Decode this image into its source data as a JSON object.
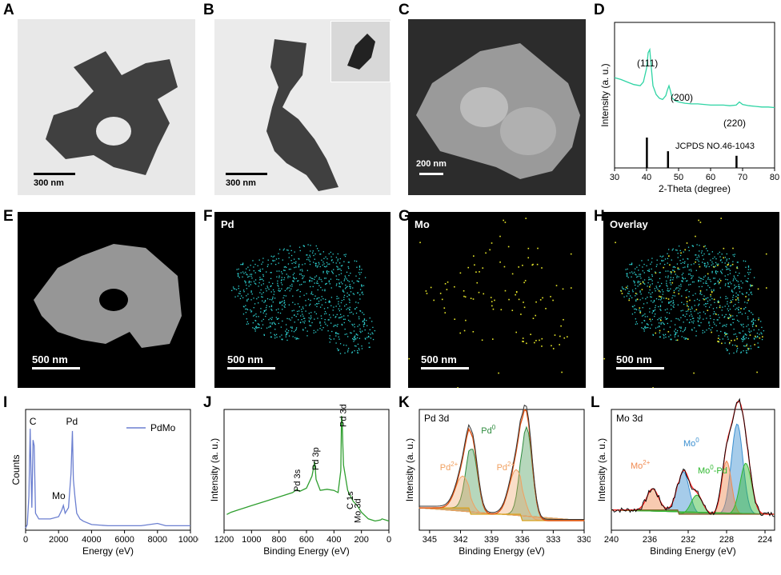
{
  "panel_letters": {
    "A": "A",
    "B": "B",
    "C": "C",
    "D": "D",
    "E": "E",
    "F": "F",
    "G": "G",
    "H": "H",
    "I": "I",
    "J": "J",
    "K": "K",
    "L": "L"
  },
  "micrographs": {
    "A": {
      "scale": "300 nm",
      "bg": "#e8e8e8"
    },
    "B": {
      "scale": "300 nm",
      "inset_scale": "",
      "bg": "#ebebeb"
    },
    "C": {
      "scale": "200 nm",
      "bg": "#2c2c2c"
    },
    "E": {
      "scale": "500 nm",
      "element": ""
    },
    "F": {
      "scale": "500 nm",
      "element": "Pd",
      "color": "#2fd6d6"
    },
    "G": {
      "scale": "500 nm",
      "element": "Mo",
      "color": "#e8e82a"
    },
    "H": {
      "scale": "500 nm",
      "element": "Overlay"
    }
  },
  "chart_data": [
    {
      "id": "D",
      "type": "line",
      "xlabel": "2-Theta (degree)",
      "ylabel": "Intensity (a. u.)",
      "xlim": [
        30,
        80
      ],
      "xticks": [
        30,
        40,
        50,
        60,
        70,
        80
      ],
      "color": "#2ed4a4",
      "series": [
        {
          "x": [
            30,
            32,
            34,
            36,
            38,
            39,
            40,
            40.5,
            41,
            41.5,
            42,
            43,
            44,
            45,
            46,
            46.5,
            47,
            47.5,
            48,
            49,
            50,
            52,
            54,
            56,
            58,
            60,
            62,
            64,
            66,
            68,
            69,
            70,
            72,
            74,
            76,
            78,
            80
          ],
          "y": [
            0.55,
            0.52,
            0.48,
            0.44,
            0.42,
            0.48,
            0.7,
            0.95,
            1.0,
            0.7,
            0.42,
            0.28,
            0.22,
            0.2,
            0.26,
            0.35,
            0.42,
            0.33,
            0.22,
            0.18,
            0.16,
            0.14,
            0.13,
            0.13,
            0.12,
            0.11,
            0.11,
            0.11,
            0.1,
            0.11,
            0.16,
            0.12,
            0.1,
            0.09,
            0.08,
            0.08,
            0.07
          ]
        }
      ],
      "annotations": [
        "(111)",
        "(200)",
        "(220)"
      ],
      "reference": {
        "label": "JCPDS NO.46-1043",
        "x": [
          40.1,
          46.7,
          68.1
        ],
        "h": [
          1.0,
          0.55,
          0.4
        ]
      }
    },
    {
      "id": "I",
      "type": "line",
      "xlabel": "Energy (eV)",
      "ylabel": "Counts",
      "xlim": [
        0,
        10000
      ],
      "xticks": [
        0,
        2000,
        4000,
        6000,
        8000,
        10000
      ],
      "color": "#6b7fd0",
      "series": [
        {
          "name": "PdMo",
          "x": [
            0,
            100,
            200,
            277,
            330,
            380,
            450,
            520,
            600,
            800,
            1000,
            1500,
            2000,
            2200,
            2293,
            2400,
            2600,
            2750,
            2839,
            2900,
            2990,
            3100,
            3300,
            3500,
            4000,
            5000,
            6000,
            7000,
            8000,
            8500,
            9000,
            10000
          ],
          "y": [
            0.02,
            0.05,
            0.3,
            0.9,
            0.5,
            0.2,
            0.8,
            0.75,
            0.15,
            0.1,
            0.1,
            0.1,
            0.12,
            0.18,
            0.22,
            0.15,
            0.2,
            0.5,
            0.88,
            0.45,
            0.3,
            0.15,
            0.1,
            0.08,
            0.05,
            0.04,
            0.04,
            0.04,
            0.06,
            0.04,
            0.04,
            0.04
          ]
        }
      ],
      "peak_labels": [
        "C",
        "Mo",
        "Pd"
      ]
    },
    {
      "id": "J",
      "type": "line",
      "xlabel": "Binding Energy (eV)",
      "ylabel": "Intensity (a. u.)",
      "xlim": [
        1200,
        0
      ],
      "xticks": [
        1200,
        1000,
        800,
        600,
        400,
        200,
        0
      ],
      "color": "#2e9e2e",
      "series": [
        {
          "x": [
            1180,
            1150,
            1100,
            1000,
            900,
            800,
            700,
            670,
            650,
            600,
            560,
            540,
            530,
            500,
            450,
            400,
            370,
            350,
            345,
            340,
            335,
            330,
            300,
            285,
            260,
            230,
            200,
            150,
            100,
            60,
            50,
            0
          ],
          "y": [
            0.1,
            0.12,
            0.14,
            0.18,
            0.22,
            0.26,
            0.3,
            0.33,
            0.31,
            0.34,
            0.45,
            0.58,
            0.42,
            0.32,
            0.33,
            0.32,
            0.3,
            0.5,
            1.0,
            0.95,
            0.72,
            0.55,
            0.32,
            0.28,
            0.22,
            0.18,
            0.12,
            0.06,
            0.04,
            0.05,
            0.06,
            0.04
          ]
        }
      ],
      "peak_labels": [
        "Pd 3d",
        "Pd 3p",
        "Pd 3s",
        "C 1s",
        "Mo 3d"
      ]
    },
    {
      "id": "K",
      "type": "area",
      "title": "Pd 3d",
      "xlabel": "Binding Energy (eV)",
      "ylabel": "Intensity (a. u.)",
      "xlim": [
        346,
        330
      ],
      "xticks": [
        345,
        342,
        339,
        336,
        333,
        330
      ],
      "labels": [
        "Pd",
        "Pd"
      ],
      "superscripts": [
        "0",
        "2+",
        "2+"
      ],
      "colors": {
        "Pd0": "#2e8b3e",
        "Pd2": "#f0a060",
        "raw": "#333333",
        "fit": "#e05010",
        "bg": "#d9a420"
      }
    },
    {
      "id": "L",
      "type": "area",
      "title": "Mo 3d",
      "xlabel": "Binding Energy (eV)",
      "ylabel": "Intensity (a. u.)",
      "xlim": [
        240,
        223
      ],
      "xticks": [
        240,
        236,
        232,
        228,
        224
      ],
      "labels": [
        "Mo",
        "Mo",
        "Mo",
        "-Pd"
      ],
      "superscripts": [
        "2+",
        "0",
        "0"
      ],
      "colors": {
        "Mo0": "#3a8fd0",
        "Mo2": "#f08a50",
        "MoPd": "#2eb82e",
        "raw": "#000000",
        "fit": "#ff2020",
        "bg": "#8a6030"
      }
    }
  ]
}
